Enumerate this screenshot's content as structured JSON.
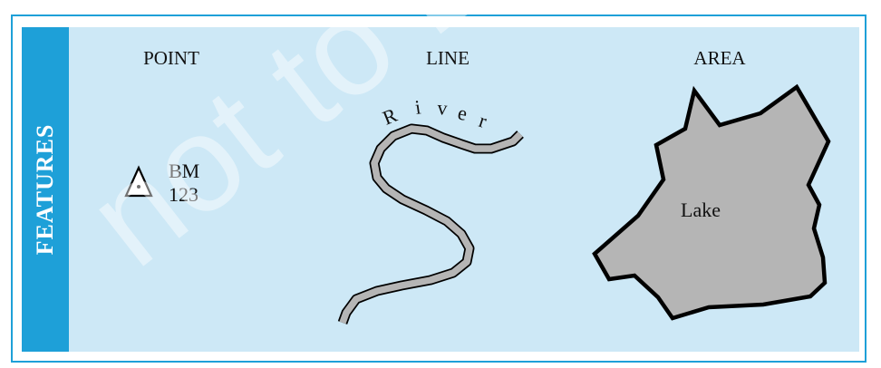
{
  "sidebar": {
    "label": "FEATURES"
  },
  "headings": {
    "point": "POINT",
    "line": "LINE",
    "area": "AREA"
  },
  "point": {
    "line1": "BM",
    "line2": "123"
  },
  "line": {
    "label_letters": [
      "R",
      "i",
      "v",
      "e",
      "r"
    ]
  },
  "area": {
    "label": "Lake"
  },
  "colors": {
    "frame": "#1ea0d8",
    "panel": "#cde8f6",
    "feature_fill": "#b5b5b5",
    "outline": "#000000"
  },
  "watermark": {
    "text": "not to be republished"
  }
}
